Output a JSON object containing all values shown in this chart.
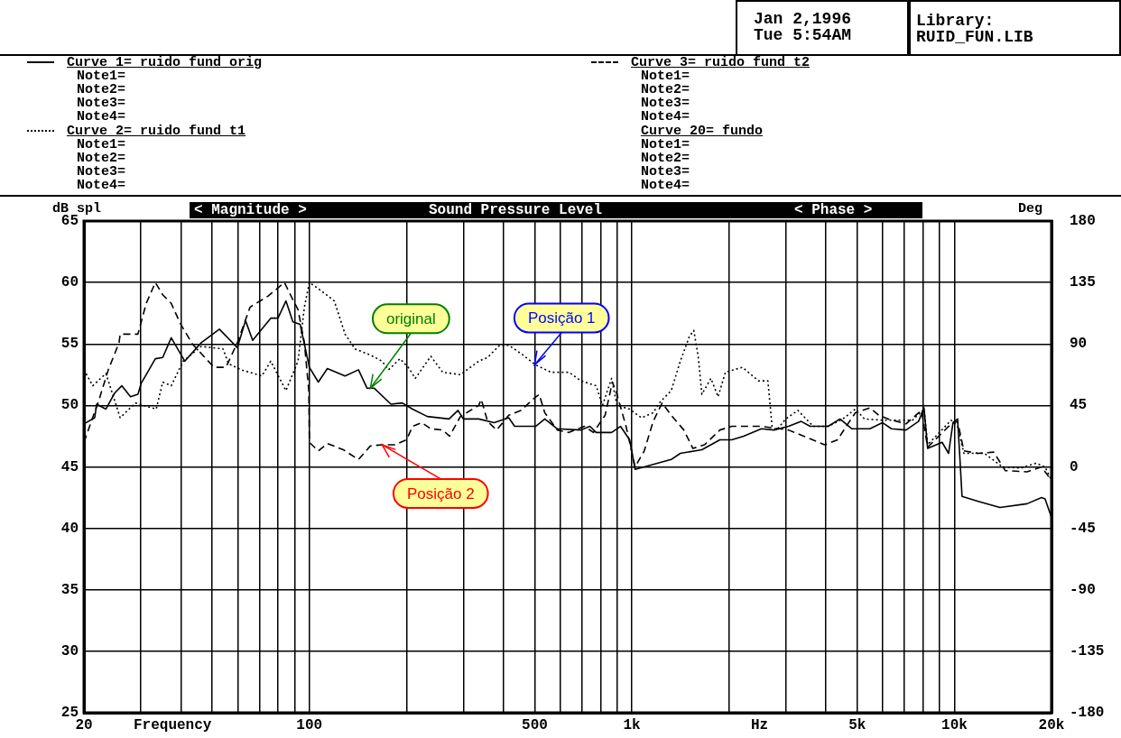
{
  "chart_data": {
    "type": "line",
    "title": "Sound Pressure Level",
    "xlabel": "Frequency",
    "ylabel": "dB spl",
    "y2label": "Deg",
    "log": "x",
    "grid": true,
    "legend": "top",
    "marker": "none",
    "xlim": [
      20,
      20000
    ],
    "xticks": [
      20,
      {
        "value": 30,
        "label": null
      },
      {
        "value": 40,
        "label": null
      },
      {
        "value": 50,
        "label": null
      },
      {
        "value": 60,
        "label": null
      },
      {
        "value": 70,
        "label": null
      },
      {
        "value": 80,
        "label": null
      },
      {
        "value": 90,
        "label": null
      },
      100,
      {
        "value": 200,
        "label": null
      },
      {
        "value": 300,
        "label": null
      },
      {
        "value": 400,
        "label": null
      },
      500,
      {
        "value": 600,
        "label": null
      },
      {
        "value": 700,
        "label": null
      },
      {
        "value": 800,
        "label": null
      },
      {
        "value": 900,
        "label": null
      },
      {
        "value": 1000,
        "label": "1k"
      },
      {
        "value": 2000,
        "label": null
      },
      {
        "value": 3000,
        "label": null
      },
      {
        "value": 4000,
        "label": null
      },
      {
        "value": 5000,
        "label": "5k"
      },
      {
        "value": 6000,
        "label": null
      },
      {
        "value": 7000,
        "label": null
      },
      {
        "value": 8000,
        "label": null
      },
      {
        "value": 9000,
        "label": null
      },
      {
        "value": 10000,
        "label": "10k"
      },
      {
        "value": 20000,
        "label": "20k"
      }
    ],
    "ylim": [
      25,
      65
    ],
    "yticks": [
      25,
      30,
      35,
      40,
      45,
      50,
      55,
      60,
      65
    ],
    "y2lim": [
      -180,
      180
    ],
    "y2ticks": [
      -180,
      -135,
      -90,
      -45,
      0,
      45,
      90,
      135,
      180
    ],
    "series": [
      {
        "name": "Curve 1= ruido fund orig",
        "color": "#000000",
        "line_style": "solid",
        "x": [
          20,
          21.6,
          21.9,
          23.4,
          24.9,
          26.2,
          27.9,
          29.4,
          30.1,
          33.3,
          35.1,
          37.3,
          41.1,
          46.2,
          52.6,
          59.8,
          63.4,
          66.7,
          75.9,
          79.9,
          84.6,
          88.9,
          93.6,
          100,
          106.6,
          113.7,
          129,
          142,
          151,
          159,
          179,
          194,
          209,
          232,
          271,
          289,
          300,
          335,
          374,
          415,
          433,
          503,
          537,
          587,
          695,
          741,
          775,
          865,
          922,
          984,
          1023,
          1092,
          1324,
          1413,
          1648,
          1874,
          2040,
          2220,
          2520,
          2760,
          3060,
          3350,
          3570,
          4060,
          4420,
          4810,
          5470,
          5980,
          6380,
          7080,
          7740,
          8050,
          8260,
          9160,
          9590,
          9900,
          10230,
          10420,
          10560,
          11860,
          13840,
          16790,
          18620,
          19100,
          20000
        ],
        "values": [
          48.5,
          49,
          50.1,
          49.7,
          51,
          51.6,
          50.7,
          50.9,
          51.8,
          53.8,
          53.9,
          55.5,
          53.6,
          55.1,
          56.2,
          54.7,
          56.9,
          55.3,
          57.1,
          57.1,
          58.5,
          56.8,
          56.6,
          53.1,
          51.9,
          53,
          52.4,
          52.9,
          51.4,
          51.4,
          50.1,
          50.2,
          49.7,
          49.1,
          48.9,
          49.6,
          48.9,
          48.9,
          48.6,
          49,
          48.3,
          48.3,
          48.9,
          48.1,
          48,
          48.3,
          47.8,
          47.8,
          48.3,
          47.2,
          44.8,
          45,
          45.6,
          46.1,
          46.4,
          47.2,
          47.2,
          47.5,
          48.1,
          48,
          48.3,
          48.7,
          48.3,
          48.3,
          48.9,
          48.1,
          48.1,
          48.6,
          48.1,
          48,
          48.7,
          49.8,
          46.5,
          47,
          46.1,
          48.6,
          48.9,
          45.3,
          42.6,
          42.2,
          41.7,
          42,
          42.5,
          42.4,
          40.9
        ]
      },
      {
        "name": "Curve 2= ruido fund t1",
        "color": "#000000",
        "line_style": "dotted",
        "x": [
          20,
          21.3,
          23.4,
          25.9,
          28.9,
          33.5,
          35.1,
          37.3,
          40.6,
          46.2,
          54,
          56.1,
          61.4,
          71.3,
          75.9,
          84.6,
          92.2,
          96.5,
          100,
          106.6,
          119.5,
          129,
          138.5,
          154.6,
          168,
          176,
          191,
          204,
          213,
          238,
          259,
          294,
          335,
          357,
          389,
          415,
          454,
          503,
          561,
          638,
          695,
          775,
          811,
          865,
          899,
          984,
          1070,
          1164,
          1216,
          1324,
          1413,
          1507,
          1556,
          1607,
          1648,
          1758,
          1850,
          1950,
          2200,
          2470,
          2640,
          2720,
          2810,
          3000,
          3270,
          3650,
          4060,
          4510,
          4930,
          5260,
          5980,
          6510,
          7410,
          8050,
          8260,
          9770,
          10230,
          10700,
          12400,
          14100,
          16070,
          17900,
          19100,
          20000
        ],
        "values": [
          52.9,
          51.6,
          52.6,
          49,
          50.2,
          49.7,
          51.9,
          51.6,
          53.6,
          54.8,
          54.6,
          53.4,
          52.9,
          52.4,
          53.6,
          51.2,
          53.6,
          58,
          60,
          59.5,
          58.5,
          55.8,
          54.6,
          54.1,
          53.6,
          52.9,
          53.8,
          53,
          52.2,
          54,
          52.7,
          52.5,
          53.6,
          53.9,
          54.9,
          54.9,
          54.2,
          53.3,
          52.7,
          52.7,
          52,
          51.6,
          50,
          52.2,
          50,
          49.7,
          49,
          49.4,
          50.2,
          51.2,
          53.6,
          55.6,
          56.1,
          53.9,
          50.9,
          52.2,
          50.7,
          52.7,
          53.1,
          52,
          52,
          48.3,
          48,
          48.9,
          49.6,
          48.3,
          48.3,
          48.9,
          49.7,
          48.9,
          48.8,
          48.8,
          48.8,
          49.7,
          46.8,
          48.8,
          48.3,
          46.1,
          46.1,
          45,
          44.9,
          45.3,
          45,
          43.9
        ]
      },
      {
        "name": "Curve 3= ruido fund t2",
        "color": "#000000",
        "line_style": "dashed",
        "x": [
          20,
          22.3,
          23.8,
          25.7,
          25.9,
          29.4,
          31.2,
          33.3,
          35.1,
          37.3,
          39.9,
          43.4,
          50.6,
          55.1,
          59.8,
          65.5,
          74.5,
          83.7,
          88.1,
          92.2,
          96.5,
          99.6,
          100,
          106.6,
          113.7,
          127.4,
          142,
          154.6,
          168,
          184,
          200,
          209,
          223,
          238,
          259,
          272,
          294,
          335,
          341,
          357,
          381,
          415,
          454,
          493,
          516,
          537,
          587,
          638,
          713,
          760,
          826,
          870,
          899,
          959,
          1023,
          1092,
          1164,
          1241,
          1324,
          1449,
          1546,
          1680,
          1874,
          2040,
          2220,
          2520,
          3060,
          3410,
          3960,
          4340,
          4620,
          4930,
          5470,
          5830,
          6220,
          7080,
          7900,
          8260,
          9770,
          10230,
          10700,
          11860,
          13240,
          14380,
          16790,
          18620,
          20000
        ],
        "values": [
          47,
          50.5,
          52.9,
          55.1,
          55.8,
          55.8,
          58.3,
          60,
          59,
          58.3,
          56.6,
          55,
          53.1,
          53.1,
          55.1,
          58,
          58.9,
          60,
          58.8,
          57.8,
          55.1,
          51.2,
          47,
          46.3,
          46.9,
          46.4,
          45.6,
          46.7,
          46.8,
          46.8,
          47.2,
          48.3,
          48.6,
          48.1,
          48,
          47.5,
          49.1,
          50,
          50.5,
          48.7,
          48,
          49.2,
          49.6,
          50.5,
          50.9,
          49.4,
          48,
          47.8,
          48.3,
          47.8,
          49.2,
          51.9,
          50.9,
          48.3,
          45,
          46.3,
          48.7,
          50.2,
          49.2,
          48,
          46.5,
          46.8,
          48,
          48.3,
          48.3,
          48.3,
          48,
          47.5,
          46.8,
          47.2,
          48.3,
          49.4,
          49.8,
          49.2,
          48.9,
          48.5,
          49.6,
          46.6,
          48.5,
          48.7,
          46.3,
          46.1,
          46.2,
          44.7,
          44.6,
          45,
          43.9
        ]
      }
    ],
    "annotations": [
      "Jan 2,1996",
      "Tue 5:54AM",
      "Library: RUID_FUN.LIB",
      "< Magnitude >",
      "< Phase >",
      "Hz",
      "Note1=",
      "Note2=",
      "Note3=",
      "Note4=",
      "Note1=",
      "Note2=",
      "Note3=",
      "Note4=",
      "Note1=",
      "Note2=",
      "Note3=",
      "Note4=",
      "Note1=",
      "Note2=",
      "Note3=",
      "Note4=",
      "Curve 20= fundo",
      {
        "text": "original",
        "x": 154.6,
        "y": 51.4
      },
      {
        "text": "Posição 1",
        "x": 499,
        "y": 53.3
      },
      {
        "text": "Posição 2",
        "x": 168,
        "y": 46.8
      }
    ]
  }
}
